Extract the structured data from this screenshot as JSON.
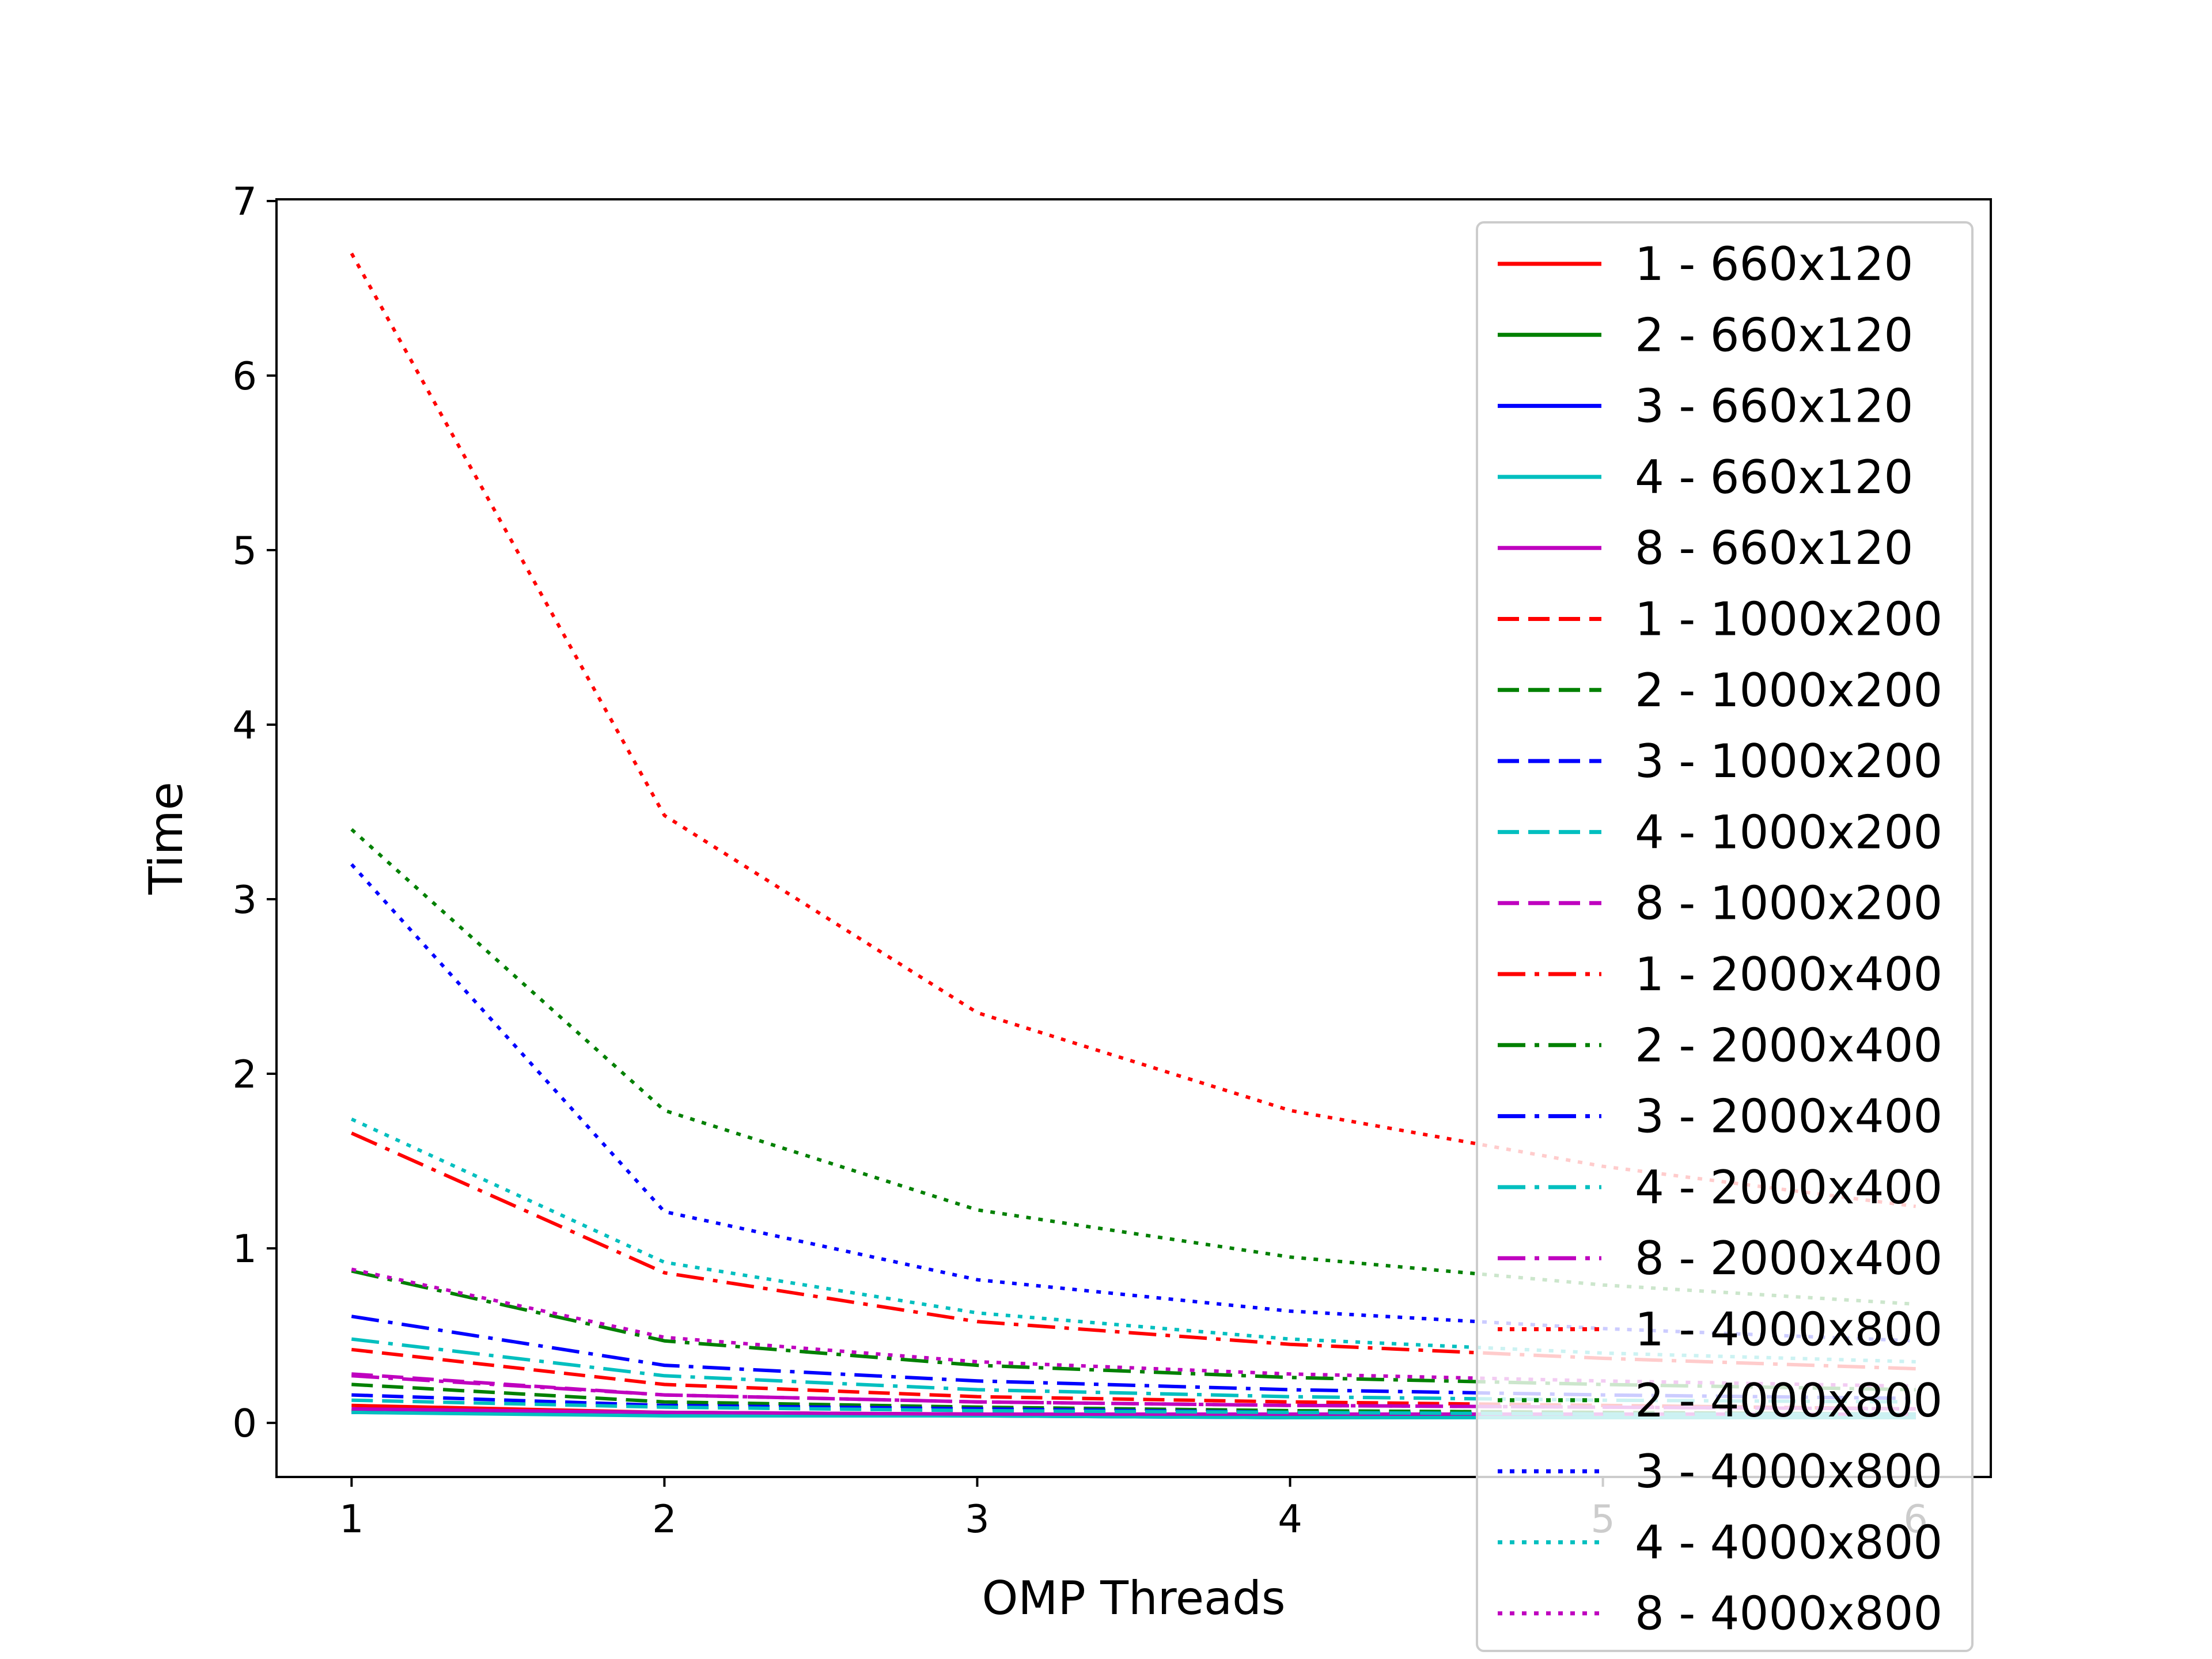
{
  "chart_data": {
    "type": "line",
    "title": "",
    "xlabel": "OMP Threads",
    "ylabel": "Time",
    "xlim": [
      0.76,
      6.24
    ],
    "ylim": [
      -0.31,
      7.01
    ],
    "xticks": [
      1,
      2,
      3,
      4,
      5,
      6
    ],
    "yticks": [
      0,
      1,
      2,
      3,
      4,
      5,
      6,
      7
    ],
    "grid": false,
    "legend_position": "right",
    "x": [
      1,
      2,
      3,
      4,
      5,
      6
    ],
    "series": [
      {
        "name": "1 - 660x120",
        "color": "#ff0000",
        "style": "solid",
        "values": [
          0.1,
          0.06,
          0.05,
          0.04,
          0.03,
          0.03
        ]
      },
      {
        "name": "2 - 660x120",
        "color": "#008000",
        "style": "solid",
        "values": [
          0.07,
          0.05,
          0.04,
          0.04,
          0.03,
          0.03
        ]
      },
      {
        "name": "3 - 660x120",
        "color": "#0000ff",
        "style": "solid",
        "values": [
          0.06,
          0.05,
          0.04,
          0.03,
          0.03,
          0.03
        ]
      },
      {
        "name": "4 - 660x120",
        "color": "#00bfbf",
        "style": "solid",
        "values": [
          0.06,
          0.04,
          0.04,
          0.03,
          0.03,
          0.03
        ]
      },
      {
        "name": "8 - 660x120",
        "color": "#bf00bf",
        "style": "solid",
        "values": [
          0.08,
          0.06,
          0.05,
          0.05,
          0.05,
          0.05
        ]
      },
      {
        "name": "1 - 1000x200",
        "color": "#ff0000",
        "style": "dashed",
        "values": [
          0.42,
          0.22,
          0.15,
          0.12,
          0.1,
          0.08
        ]
      },
      {
        "name": "2 - 1000x200",
        "color": "#008000",
        "style": "dashed",
        "values": [
          0.22,
          0.12,
          0.09,
          0.07,
          0.06,
          0.05
        ]
      },
      {
        "name": "3 - 1000x200",
        "color": "#0000ff",
        "style": "dashed",
        "values": [
          0.16,
          0.1,
          0.08,
          0.06,
          0.05,
          0.05
        ]
      },
      {
        "name": "4 - 1000x200",
        "color": "#00bfbf",
        "style": "dashed",
        "values": [
          0.13,
          0.09,
          0.07,
          0.06,
          0.05,
          0.05
        ]
      },
      {
        "name": "8 - 1000x200",
        "color": "#bf00bf",
        "style": "dashed",
        "values": [
          0.28,
          0.16,
          0.12,
          0.1,
          0.09,
          0.08
        ]
      },
      {
        "name": "1 - 2000x400",
        "color": "#ff0000",
        "style": "dashdot",
        "values": [
          1.66,
          0.86,
          0.58,
          0.45,
          0.37,
          0.31
        ]
      },
      {
        "name": "2 - 2000x400",
        "color": "#008000",
        "style": "dashdot",
        "values": [
          0.87,
          0.47,
          0.33,
          0.26,
          0.22,
          0.19
        ]
      },
      {
        "name": "3 - 2000x400",
        "color": "#0000ff",
        "style": "dashdot",
        "values": [
          0.61,
          0.33,
          0.24,
          0.19,
          0.16,
          0.14
        ]
      },
      {
        "name": "4 - 2000x400",
        "color": "#00bfbf",
        "style": "dashdot",
        "values": [
          0.48,
          0.27,
          0.19,
          0.15,
          0.13,
          0.12
        ]
      },
      {
        "name": "8 - 2000x400",
        "color": "#bf00bf",
        "style": "dashdot",
        "values": [
          0.27,
          0.16,
          0.12,
          0.1,
          0.09,
          0.08
        ]
      },
      {
        "name": "1 - 4000x800",
        "color": "#ff0000",
        "style": "dotted",
        "values": [
          6.7,
          3.48,
          2.35,
          1.79,
          1.47,
          1.24
        ]
      },
      {
        "name": "2 - 4000x800",
        "color": "#008000",
        "style": "dotted",
        "values": [
          3.4,
          1.79,
          1.22,
          0.95,
          0.79,
          0.68
        ]
      },
      {
        "name": "3 - 4000x800",
        "color": "#0000ff",
        "style": "dotted",
        "values": [
          3.2,
          1.21,
          0.82,
          0.64,
          0.54,
          0.47
        ]
      },
      {
        "name": "4 - 4000x800",
        "color": "#00bfbf",
        "style": "dotted",
        "values": [
          1.74,
          0.92,
          0.63,
          0.48,
          0.4,
          0.35
        ]
      },
      {
        "name": "8 - 4000x800",
        "color": "#bf00bf",
        "style": "dotted",
        "values": [
          0.88,
          0.49,
          0.35,
          0.28,
          0.24,
          0.21
        ]
      }
    ]
  }
}
